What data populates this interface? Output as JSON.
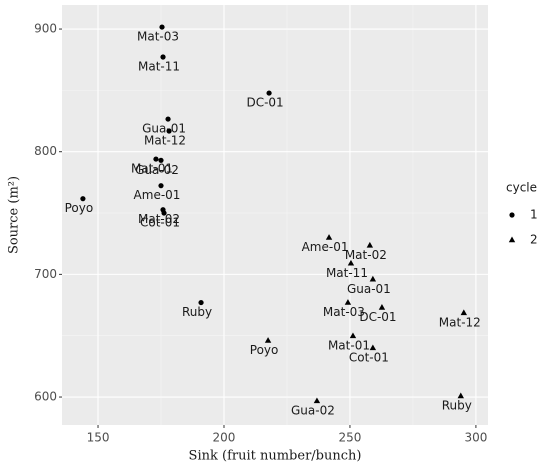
{
  "chart_data": {
    "type": "scatter",
    "x_label": "Sink (fruit number/bunch)",
    "y_label": "Source (m²)",
    "xlim": [
      135.7,
      304.8
    ],
    "ylim": [
      577.2,
      919.6
    ],
    "xticks": [
      150,
      200,
      250,
      300
    ],
    "yticks": [
      600,
      700,
      800,
      900
    ],
    "grid": true,
    "legend_title": "cycle",
    "legend_position": "right",
    "series": [
      {
        "name": "1",
        "color": "#000000",
        "marker": "circle",
        "labels": [
          "Mat-03",
          "Mat-11",
          "DC-01",
          "Gua-01",
          "Mat-12",
          "Mat-01",
          "Gua-02",
          "Ame-01",
          "Poyo",
          "Mat-02",
          "Cot-01",
          "Ruby"
        ],
        "x": [
          175.4,
          175.8,
          217.9,
          177.8,
          178.2,
          173.0,
          175.0,
          175.0,
          144.0,
          175.8,
          176.2,
          190.9
        ],
        "y": [
          901.6,
          877.2,
          847.8,
          826.6,
          816.9,
          794.0,
          793.0,
          772.3,
          761.7,
          752.7,
          750.0,
          677.0
        ]
      },
      {
        "name": "2",
        "color": "#000000",
        "marker": "triangle",
        "labels": [
          "Ame-01",
          "Mat-02",
          "Mat-11",
          "Gua-01",
          "Mat-03",
          "DC-01",
          "Mat-12",
          "Poyo",
          "Mat-01",
          "Cot-01",
          "Gua-02",
          "Ruby"
        ],
        "x": [
          241.7,
          257.9,
          250.4,
          259.1,
          249.2,
          262.7,
          295.2,
          217.5,
          251.2,
          259.1,
          236.9,
          294.0
        ],
        "y": [
          730.0,
          723.6,
          709.0,
          696.0,
          677.0,
          673.0,
          668.6,
          646.0,
          649.8,
          640.0,
          596.8,
          600.8
        ]
      }
    ]
  }
}
